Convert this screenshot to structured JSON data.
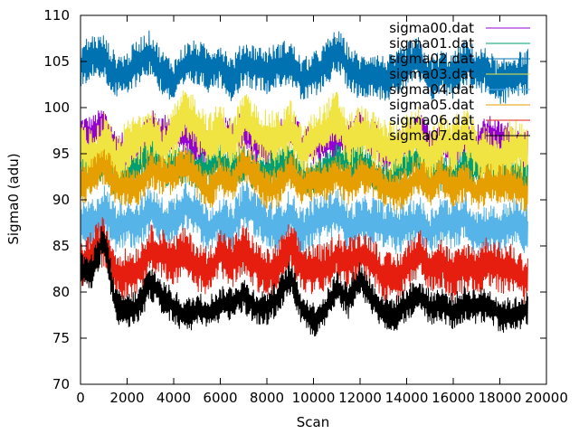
{
  "chart_data": {
    "type": "line",
    "xlabel": "Scan",
    "ylabel": "Sigma0 (adu)",
    "xlim": [
      0,
      20000
    ],
    "ylim": [
      70,
      110
    ],
    "x_ticks": [
      "0",
      "2000",
      "4000",
      "6000",
      "8000",
      "10000",
      "12000",
      "14000",
      "16000",
      "18000",
      "20000"
    ],
    "y_ticks": [
      "70",
      "75",
      "80",
      "85",
      "90",
      "95",
      "100",
      "105",
      "110"
    ],
    "grid": false,
    "legend_position": "top-right",
    "x_extent": [
      0,
      19200
    ],
    "x": [
      0,
      500,
      1000,
      1500,
      2000,
      2500,
      3000,
      3500,
      4000,
      4500,
      5000,
      5500,
      6000,
      6500,
      7000,
      7500,
      8000,
      8500,
      9000,
      9500,
      10000,
      10500,
      11000,
      11500,
      12000,
      12500,
      13000,
      13500,
      14000,
      14500,
      15000,
      15500,
      16000,
      16500,
      17000,
      17500,
      18000,
      18500,
      19000
    ],
    "series": [
      {
        "name": "sigma00.dat",
        "color": "#9400d3",
        "noise": 1.5,
        "values": [
          97,
          96.5,
          97.5,
          95.5,
          96,
          96.5,
          97.5,
          96.5,
          97,
          97.5,
          96.5,
          96,
          97,
          96,
          97.5,
          96.5,
          96,
          96.5,
          97,
          95.5,
          96,
          96.5,
          97,
          96,
          97,
          96.5,
          95.5,
          96,
          96.5,
          97,
          95.5,
          96.5,
          96,
          97,
          96,
          96.5,
          96,
          96.5,
          96
        ]
      },
      {
        "name": "sigma01.dat",
        "color": "#009e73",
        "noise": 1.5,
        "values": [
          94,
          93.5,
          94,
          92.5,
          93,
          93.5,
          94.5,
          93,
          94,
          94.5,
          93.5,
          93,
          94,
          93,
          94.5,
          93.5,
          93,
          93.5,
          94,
          92.5,
          93,
          93.5,
          94,
          93,
          94,
          93.5,
          92.5,
          93,
          93.5,
          94,
          92.5,
          93.5,
          93,
          94,
          93,
          93.5,
          93,
          93.5,
          93
        ]
      },
      {
        "name": "sigma02.dat",
        "color": "#0072b2",
        "noise": 1.8,
        "values": [
          104,
          105.5,
          106,
          104,
          103.5,
          104.5,
          105.5,
          104,
          103.5,
          105,
          104.5,
          103.5,
          104.5,
          103.5,
          105.5,
          104.5,
          103.5,
          104,
          105,
          103.5,
          104,
          104.5,
          105.5,
          104,
          103.5,
          104.5,
          103.5,
          103,
          104,
          105,
          103.5,
          104.5,
          103.5,
          104.5,
          103.5,
          104,
          103,
          104,
          103.5
        ]
      },
      {
        "name": "sigma03.dat",
        "color": "#f0e442",
        "noise": 2.2,
        "values": [
          95.5,
          95,
          97,
          94,
          95,
          96,
          98,
          96,
          97.5,
          99,
          97.5,
          96,
          98,
          96.5,
          99,
          97,
          96,
          96.5,
          98.5,
          95.5,
          96.5,
          97,
          98.5,
          96.5,
          98,
          97,
          95.5,
          95,
          96,
          97.5,
          95,
          96.5,
          95.5,
          96.5,
          95,
          95.5,
          95,
          95.5,
          95
        ]
      },
      {
        "name": "sigma04.dat",
        "color": "#56b4e9",
        "noise": 2.0,
        "values": [
          87.5,
          88,
          89,
          86.5,
          87,
          87.5,
          89.5,
          88,
          87.5,
          89,
          88,
          87,
          88.5,
          87,
          89,
          88,
          87,
          87.5,
          89,
          86.5,
          87,
          87.5,
          89,
          87.5,
          88,
          87.5,
          86.5,
          86.5,
          87.5,
          88.5,
          86.5,
          87.5,
          86.5,
          88,
          87,
          87.5,
          86.5,
          87,
          86.5
        ]
      },
      {
        "name": "sigma05.dat",
        "color": "#e69f00",
        "noise": 1.6,
        "values": [
          92,
          92.5,
          93.5,
          91,
          91.5,
          92,
          94,
          92.5,
          92,
          93.5,
          92.5,
          91.5,
          93,
          91.5,
          93.5,
          92.5,
          91.5,
          92,
          93.5,
          91,
          91.5,
          92,
          93.5,
          92,
          92.5,
          92,
          91,
          91,
          92,
          93,
          91,
          92,
          91,
          92.5,
          91.5,
          92,
          91,
          91.5,
          91
        ]
      },
      {
        "name": "sigma06.dat",
        "color": "#e51e10",
        "noise": 2.0,
        "values": [
          83,
          83.5,
          85,
          82,
          82.5,
          83,
          84.5,
          83.5,
          83,
          84.5,
          83.5,
          82.5,
          84,
          82.5,
          84.5,
          83.5,
          82.5,
          83,
          84.5,
          82,
          82.5,
          83,
          84.5,
          83,
          83.5,
          83,
          82,
          82,
          83,
          84,
          82,
          83,
          82,
          83.5,
          82.5,
          83,
          82,
          82.5,
          82
        ]
      },
      {
        "name": "sigma07.dat",
        "color": "#000000",
        "noise": 1.4,
        "values": [
          82,
          81.5,
          86,
          79,
          78.5,
          78.5,
          80.5,
          79,
          78.5,
          78,
          78.5,
          77.5,
          78,
          78.5,
          80,
          79,
          78.5,
          79,
          81,
          78,
          77.5,
          78.5,
          80.5,
          78.5,
          81,
          79.5,
          78.5,
          78,
          78.5,
          79,
          78,
          79,
          78.5,
          79,
          78,
          78,
          77.5,
          78,
          78.5
        ]
      }
    ]
  }
}
